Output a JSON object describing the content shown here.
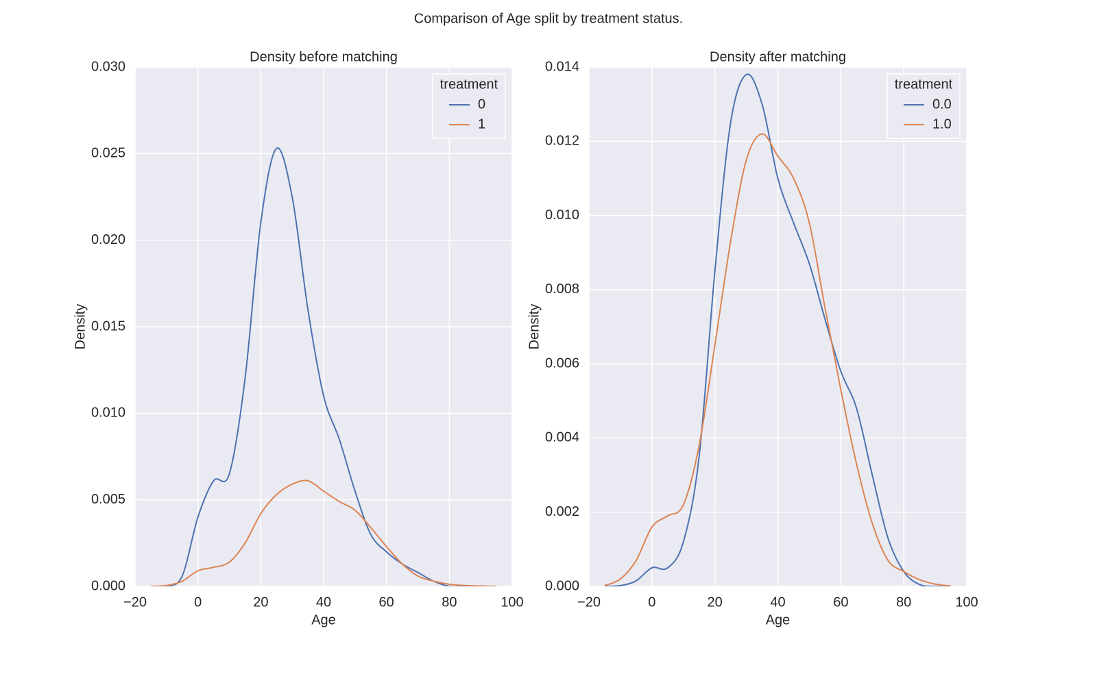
{
  "title": "Comparison of Age split by treatment status.",
  "chart_data": [
    {
      "type": "line",
      "title": "Density before matching",
      "xlabel": "Age",
      "ylabel": "Density",
      "x": [
        -15,
        -10,
        -5,
        0,
        5,
        10,
        15,
        20,
        25,
        30,
        35,
        40,
        45,
        50,
        55,
        60,
        65,
        70,
        75,
        80,
        85,
        90,
        95
      ],
      "series": [
        {
          "name": "0",
          "color": "#4c72b0",
          "values": [
            0,
            0,
            0.0006,
            0.004,
            0.0061,
            0.0065,
            0.012,
            0.021,
            0.0253,
            0.0225,
            0.016,
            0.011,
            0.0085,
            0.0055,
            0.003,
            0.002,
            0.0013,
            0.0008,
            0.0003,
            0,
            0,
            0,
            0
          ]
        },
        {
          "name": "1",
          "color": "#dd8452",
          "values": [
            0,
            5e-05,
            0.0003,
            0.0009,
            0.0011,
            0.0014,
            0.0025,
            0.0042,
            0.0053,
            0.0059,
            0.0061,
            0.0055,
            0.0049,
            0.0044,
            0.0034,
            0.0023,
            0.0013,
            0.0006,
            0.0003,
            0.00012,
            5e-05,
            2e-05,
            0
          ]
        }
      ],
      "legend_title": "treatment",
      "legend": "upper right",
      "grid": true,
      "xlim": [
        -20,
        100
      ],
      "xticks": [
        {
          "value": -20,
          "label": "−20"
        },
        0,
        20,
        40,
        60,
        80,
        100
      ],
      "ylim": [
        0,
        0.03
      ],
      "yticks": [
        {
          "value": 0,
          "label": "0.000"
        },
        0.005,
        {
          "value": 0.01,
          "label": "0.010"
        },
        0.015,
        {
          "value": 0.02,
          "label": "0.020"
        },
        0.025,
        {
          "value": 0.03,
          "label": "0.030"
        }
      ]
    },
    {
      "type": "line",
      "title": "Density after matching",
      "xlabel": "Age",
      "ylabel": "Density",
      "x": [
        -15,
        -10,
        -5,
        0,
        5,
        10,
        15,
        20,
        25,
        30,
        35,
        40,
        45,
        50,
        55,
        60,
        65,
        70,
        75,
        80,
        85,
        90,
        95
      ],
      "series": [
        {
          "name": "0.0",
          "color": "#4c72b0",
          "values": [
            0,
            2e-05,
            0.00015,
            0.0005,
            0.0005,
            0.0012,
            0.0035,
            0.0085,
            0.0125,
            0.0138,
            0.013,
            0.011,
            0.0098,
            0.0087,
            0.0072,
            0.0058,
            0.0048,
            0.003,
            0.0013,
            0.0004,
            5e-05,
            0,
            0
          ]
        },
        {
          "name": "1.0",
          "color": "#dd8452",
          "values": [
            2e-05,
            0.0002,
            0.0007,
            0.0016,
            0.0019,
            0.0022,
            0.0038,
            0.0065,
            0.0093,
            0.0115,
            0.0122,
            0.0116,
            0.011,
            0.0098,
            0.0075,
            0.0053,
            0.0033,
            0.0017,
            0.0007,
            0.0004,
            0.00018,
            6e-05,
            1e-05
          ]
        }
      ],
      "legend_title": "treatment",
      "legend": "upper right",
      "grid": true,
      "xlim": [
        -20,
        100
      ],
      "xticks": [
        {
          "value": -20,
          "label": "−20"
        },
        0,
        20,
        40,
        60,
        80,
        100
      ],
      "ylim": [
        0,
        0.014
      ],
      "yticks": [
        {
          "value": 0,
          "label": "0.000"
        },
        0.002,
        0.004,
        0.006,
        0.008,
        {
          "value": 0.01,
          "label": "0.010"
        },
        0.012,
        0.014
      ]
    }
  ]
}
